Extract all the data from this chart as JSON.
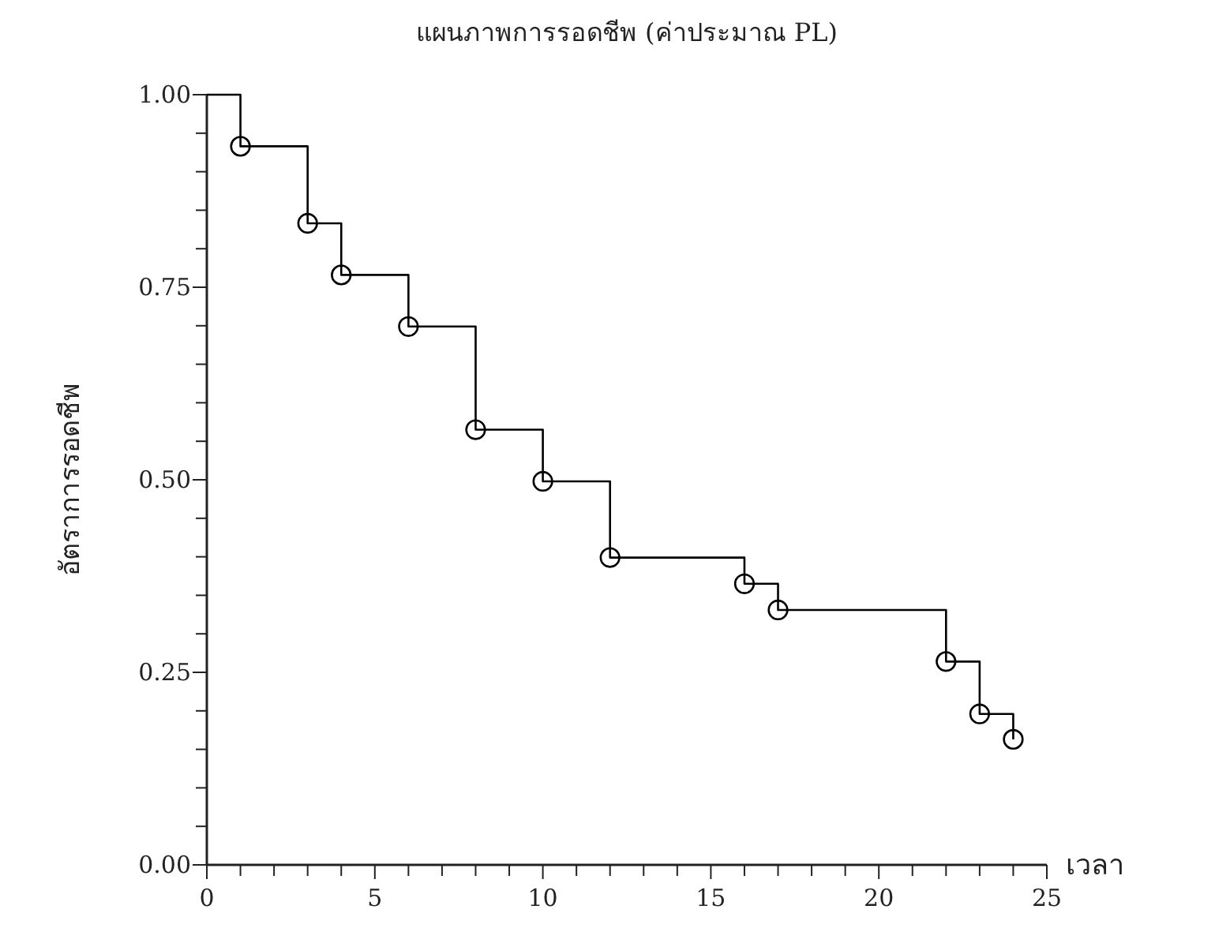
{
  "chart_data": {
    "type": "step",
    "title": "แผนภาพการรอดชีพ (ค่าประมาณ PL)",
    "xlabel": "เวลา",
    "ylabel": "อัตราการรอดชีพ",
    "xlim": [
      0,
      25
    ],
    "ylim": [
      0,
      1
    ],
    "xticks": [
      0,
      {
        "value": 1,
        "label": null
      },
      {
        "value": 2,
        "label": null
      },
      {
        "value": 3,
        "label": null
      },
      {
        "value": 4,
        "label": null
      },
      5,
      {
        "value": 6,
        "label": null
      },
      {
        "value": 7,
        "label": null
      },
      {
        "value": 8,
        "label": null
      },
      {
        "value": 9,
        "label": null
      },
      10,
      {
        "value": 11,
        "label": null
      },
      {
        "value": 12,
        "label": null
      },
      {
        "value": 13,
        "label": null
      },
      {
        "value": 14,
        "label": null
      },
      15,
      {
        "value": 16,
        "label": null
      },
      {
        "value": 17,
        "label": null
      },
      {
        "value": 18,
        "label": null
      },
      {
        "value": 19,
        "label": null
      },
      20,
      {
        "value": 21,
        "label": null
      },
      {
        "value": 22,
        "label": null
      },
      {
        "value": 23,
        "label": null
      },
      {
        "value": 24,
        "label": null
      },
      25
    ],
    "yticks": [
      {
        "value": 0,
        "label": "0.00"
      },
      {
        "value": 0.05,
        "label": null
      },
      {
        "value": 0.1,
        "label": null
      },
      {
        "value": 0.15,
        "label": null
      },
      {
        "value": 0.2,
        "label": null
      },
      {
        "value": 0.25,
        "label": "0.25"
      },
      {
        "value": 0.3,
        "label": null
      },
      {
        "value": 0.35,
        "label": null
      },
      {
        "value": 0.4,
        "label": null
      },
      {
        "value": 0.45,
        "label": null
      },
      {
        "value": 0.5,
        "label": "0.50"
      },
      {
        "value": 0.55,
        "label": null
      },
      {
        "value": 0.6,
        "label": null
      },
      {
        "value": 0.65,
        "label": null
      },
      {
        "value": 0.7,
        "label": null
      },
      {
        "value": 0.75,
        "label": "0.75"
      },
      {
        "value": 0.8,
        "label": null
      },
      {
        "value": 0.85,
        "label": null
      },
      {
        "value": 0.9,
        "label": null
      },
      {
        "value": 0.95,
        "label": null
      },
      {
        "value": 1,
        "label": "1.00"
      }
    ],
    "grid": false,
    "series": [
      {
        "color": "#000000",
        "marker": "none",
        "x": [
          0,
          1,
          3,
          4,
          6,
          8,
          10,
          12,
          16,
          17,
          22,
          23,
          24
        ],
        "values": [
          1,
          0.933,
          0.833,
          0.766,
          0.699,
          0.565,
          0.498,
          0.399,
          0.365,
          0.331,
          0.264,
          0.196,
          0.163
        ]
      },
      {
        "type": "scatter",
        "color": "#000000",
        "marker": "circle",
        "x": [
          1,
          3,
          4,
          6,
          8,
          10,
          12,
          16,
          17,
          22,
          23,
          24
        ],
        "values": [
          0.933,
          0.833,
          0.766,
          0.699,
          0.565,
          0.498,
          0.399,
          0.365,
          0.331,
          0.264,
          0.196,
          0.163
        ]
      }
    ]
  }
}
